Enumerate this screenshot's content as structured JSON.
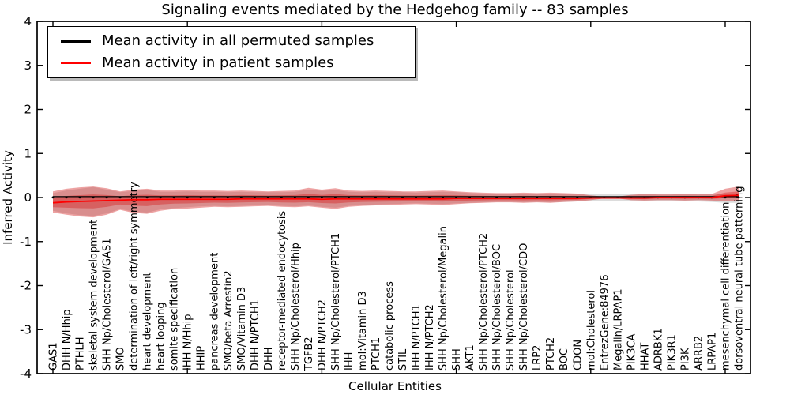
{
  "chart_data": {
    "type": "line",
    "title": "Signaling events mediated by the Hedgehog family -- 83 samples",
    "xlabel": "Cellular Entities",
    "ylabel": "Inferred Activity",
    "ylim": [
      -4,
      4
    ],
    "yticks": [
      4,
      3,
      2,
      1,
      0,
      -1,
      -2,
      -3,
      -4
    ],
    "grid": false,
    "legend_position": "top-left",
    "categories": [
      "GAS1",
      "DHH N/Hhip",
      "PTHLH",
      "skeletal system development",
      "SHH Np/Cholesterol/GAS1",
      "SMO",
      "determination of left/right symmetry",
      "heart development",
      "heart looping",
      "somite specification",
      "IHH N/Hhip",
      "HHIP",
      "pancreas development",
      "SMO/beta Arrestin2",
      "SMO/Vitamin D3",
      "DHH N/PTCH1",
      "DHH",
      "receptor-mediated endocytosis",
      "SHH Np/Cholesterol/Hhip",
      "TGFB2",
      "DHH N/PTCH2",
      "SHH Np/Cholesterol/PTCH1",
      "IHH",
      "mol:Vitamin D3",
      "PTCH1",
      "catabolic process",
      "STIL",
      "IHH N/PTCH1",
      "IHH N/PTCH2",
      "SHH Np/Cholesterol/Megalin",
      "SHH",
      "AKT1",
      "SHH Np/Cholesterol/PTCH2",
      "SHH Np/Cholesterol/BOC",
      "SHH Np/Cholesterol",
      "SHH Np/Cholesterol/CDO",
      "LRP2",
      "PTCH2",
      "BOC",
      "CDON",
      "mol:Cholesterol",
      "EntrezGene:84976",
      "Megalin/LRPAP1",
      "PIK3CA",
      "HHAT",
      "ADRBK1",
      "PIK3R1",
      "PI3K",
      "ARRB2",
      "LRPAP1",
      "mesenchymal cell differentiation",
      "dorsoventral neural tube patterning"
    ],
    "series": [
      {
        "name": "Mean activity in all permuted samples",
        "color": "#000000",
        "marker": "dot",
        "values": [
          0.02,
          0.02,
          0.02,
          0.02,
          0.02,
          0.02,
          0.02,
          0.02,
          0.02,
          0.02,
          0.02,
          0.02,
          0.02,
          0.02,
          0.02,
          0.02,
          0.02,
          0.02,
          0.02,
          0.02,
          0.02,
          0.02,
          0.02,
          0.02,
          0.02,
          0.02,
          0.02,
          0.02,
          0.02,
          0.02,
          0.02,
          0.02,
          0.02,
          0.02,
          0.02,
          0.02,
          0.02,
          0.02,
          0.02,
          0.02,
          0.02,
          0.02,
          0.02,
          0.02,
          0.02,
          0.02,
          0.02,
          0.02,
          0.02,
          0.02,
          0.02,
          0.02
        ],
        "band_top": [
          0.1,
          0.16,
          0.2,
          0.24,
          0.18,
          0.12,
          0.15,
          0.17,
          0.13,
          0.13,
          0.14,
          0.13,
          0.13,
          0.12,
          0.13,
          0.12,
          0.12,
          0.12,
          0.13,
          0.18,
          0.15,
          0.17,
          0.13,
          0.12,
          0.13,
          0.12,
          0.12,
          0.11,
          0.12,
          0.13,
          0.12,
          0.1,
          0.09,
          0.09,
          0.09,
          0.09,
          0.09,
          0.09,
          0.09,
          0.08,
          0.08,
          0.08,
          0.08,
          0.08,
          0.08,
          0.08,
          0.08,
          0.08,
          0.08,
          0.09,
          0.09,
          0.09
        ],
        "band_bottom": [
          -0.3,
          -0.36,
          -0.4,
          -0.42,
          -0.36,
          -0.26,
          -0.32,
          -0.34,
          -0.27,
          -0.24,
          -0.22,
          -0.2,
          -0.19,
          -0.2,
          -0.19,
          -0.18,
          -0.17,
          -0.19,
          -0.2,
          -0.18,
          -0.21,
          -0.23,
          -0.19,
          -0.17,
          -0.16,
          -0.15,
          -0.14,
          -0.13,
          -0.14,
          -0.15,
          -0.13,
          -0.12,
          -0.11,
          -0.1,
          -0.1,
          -0.11,
          -0.1,
          -0.11,
          -0.1,
          -0.09,
          -0.09,
          -0.09,
          -0.09,
          -0.09,
          -0.09,
          -0.09,
          -0.09,
          -0.09,
          -0.09,
          -0.1,
          -0.12,
          -0.12
        ],
        "band_color": "#808080",
        "band_opacity": 0.28
      },
      {
        "name": "Mean activity in patient samples",
        "color": "#ff0000",
        "marker": "none",
        "values": [
          -0.12,
          -0.1,
          -0.09,
          -0.08,
          -0.07,
          -0.06,
          -0.05,
          -0.05,
          -0.04,
          -0.04,
          -0.04,
          -0.04,
          -0.04,
          -0.04,
          -0.03,
          -0.03,
          -0.03,
          -0.03,
          -0.03,
          -0.03,
          -0.04,
          -0.03,
          -0.03,
          -0.03,
          -0.03,
          -0.03,
          -0.03,
          -0.03,
          -0.03,
          -0.03,
          -0.02,
          -0.02,
          -0.02,
          -0.02,
          -0.02,
          -0.02,
          -0.02,
          -0.02,
          -0.02,
          -0.02,
          -0.01,
          -0.01,
          -0.01,
          -0.01,
          -0.01,
          0.0,
          0.0,
          0.0,
          0.0,
          0.0,
          0.04,
          0.05
        ],
        "band_top": [
          0.14,
          0.2,
          0.23,
          0.25,
          0.21,
          0.14,
          0.18,
          0.2,
          0.16,
          0.16,
          0.17,
          0.16,
          0.16,
          0.15,
          0.16,
          0.15,
          0.14,
          0.15,
          0.16,
          0.22,
          0.18,
          0.21,
          0.16,
          0.15,
          0.16,
          0.15,
          0.14,
          0.14,
          0.15,
          0.16,
          0.14,
          0.12,
          0.11,
          0.1,
          0.1,
          0.11,
          0.1,
          0.11,
          0.1,
          0.09,
          0.05,
          0.02,
          0.02,
          0.06,
          0.08,
          0.07,
          0.07,
          0.08,
          0.07,
          0.08,
          0.2,
          0.25
        ],
        "band_bottom": [
          -0.34,
          -0.39,
          -0.43,
          -0.45,
          -0.39,
          -0.28,
          -0.35,
          -0.37,
          -0.3,
          -0.26,
          -0.25,
          -0.23,
          -0.21,
          -0.22,
          -0.21,
          -0.2,
          -0.19,
          -0.21,
          -0.22,
          -0.2,
          -0.23,
          -0.26,
          -0.21,
          -0.19,
          -0.18,
          -0.17,
          -0.16,
          -0.15,
          -0.16,
          -0.17,
          -0.15,
          -0.13,
          -0.12,
          -0.11,
          -0.11,
          -0.12,
          -0.11,
          -0.12,
          -0.1,
          -0.09,
          -0.06,
          -0.02,
          -0.02,
          -0.06,
          -0.07,
          -0.06,
          -0.06,
          -0.07,
          -0.06,
          -0.07,
          -0.08,
          -0.09
        ],
        "band_color": "#d42222",
        "band_opacity": 0.42,
        "band_inner_fraction": 0.45
      }
    ]
  }
}
